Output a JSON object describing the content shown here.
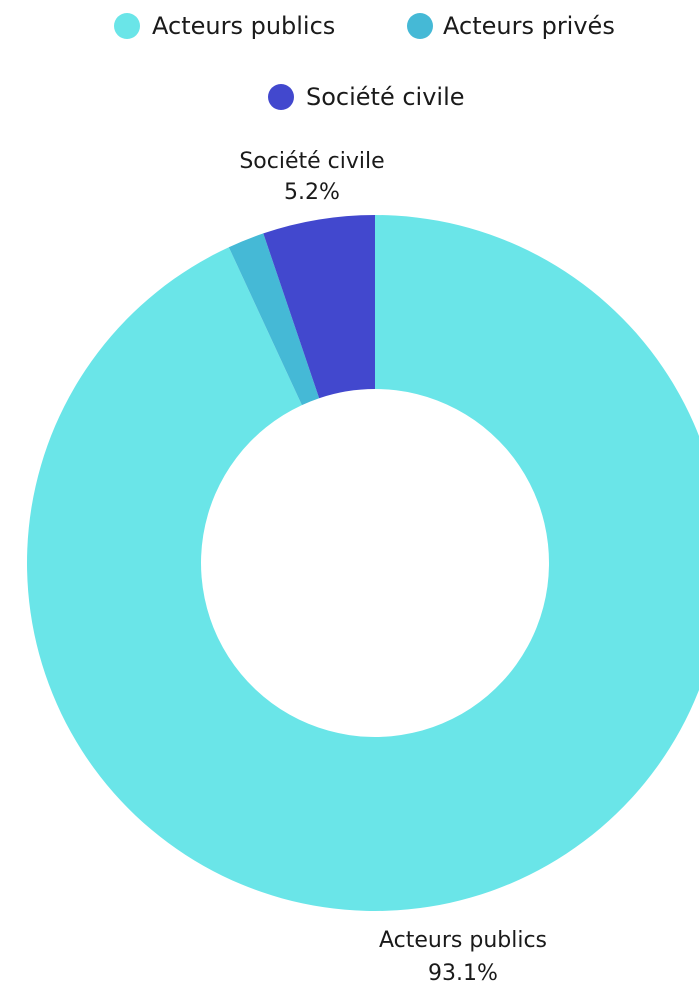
{
  "chart_data": {
    "type": "pie",
    "title": "",
    "legend_placement": "top",
    "categories": [
      "Acteurs publics",
      "Acteurs privés",
      "Société civile"
    ],
    "values": [
      93.1,
      1.7,
      5.2
    ],
    "colors": [
      "#6ae5e8",
      "#45b9d6",
      "#4248ce"
    ],
    "legend": [
      {
        "label": "Acteurs publics",
        "color": "#6ae5e8"
      },
      {
        "label": "Acteurs privés",
        "color": "#45b9d6"
      },
      {
        "label": "Société civile",
        "color": "#4248ce"
      }
    ],
    "data_labels": [
      {
        "name": "Société civile",
        "value": "5.2%"
      },
      {
        "name": "Acteurs publics",
        "value": "93.1%"
      }
    ]
  }
}
